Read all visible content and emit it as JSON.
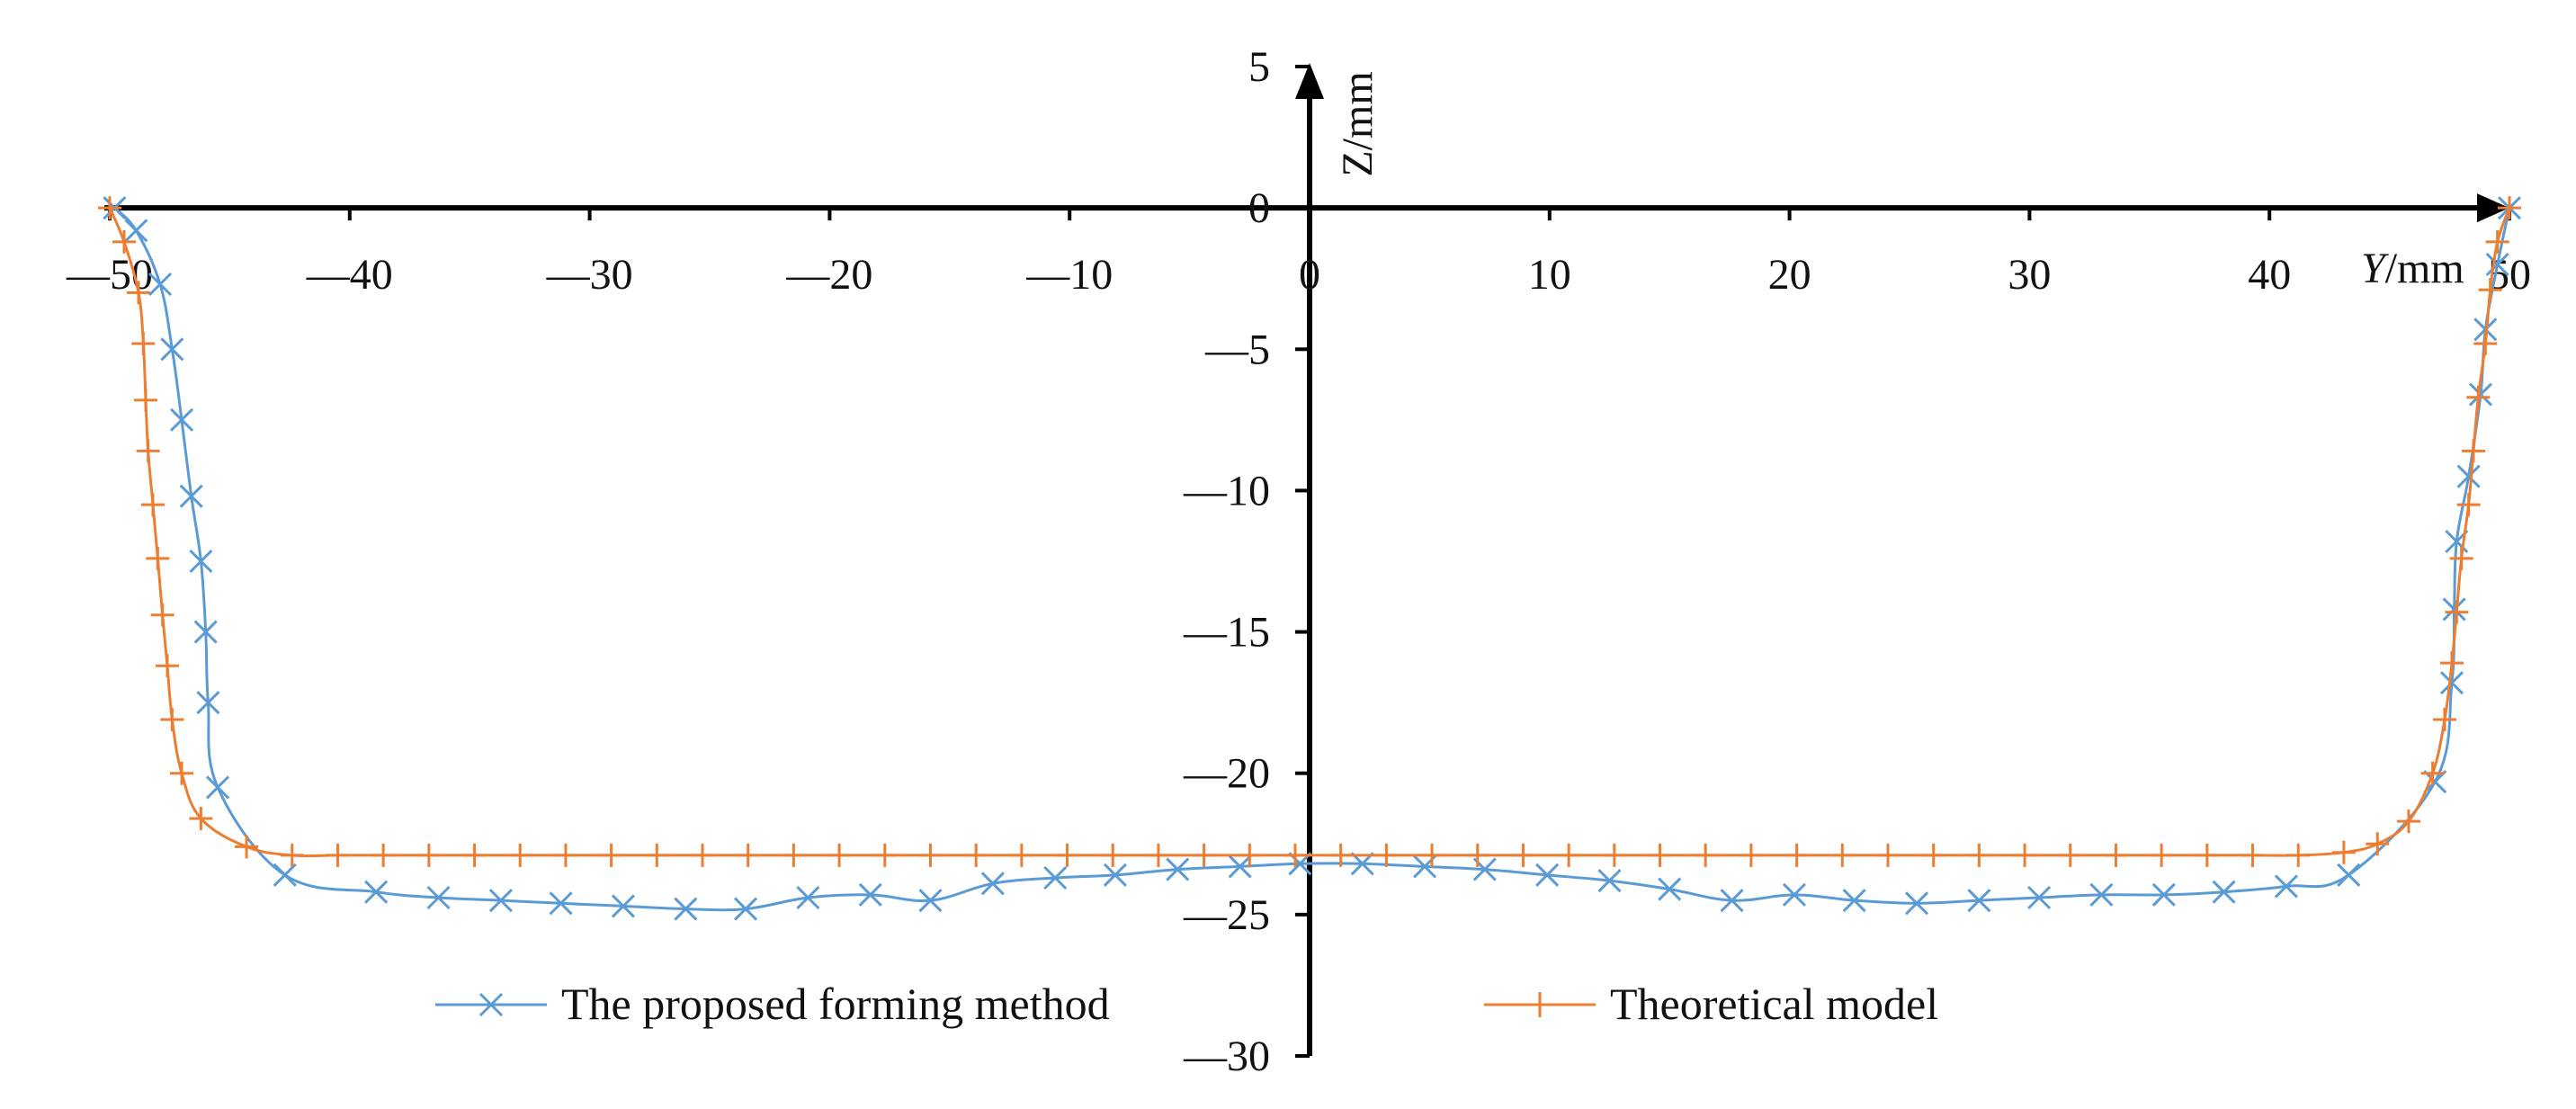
{
  "chart_data": {
    "type": "line",
    "title": "",
    "xlabel": "Y/mm",
    "xlabel_parts": [
      "Y",
      "/mm"
    ],
    "ylabel": "Z/mm",
    "xlim": [
      -50,
      50
    ],
    "ylim": [
      -30,
      5
    ],
    "x_ticks": [
      -50,
      -40,
      -30,
      -20,
      -10,
      0,
      10,
      20,
      30,
      40,
      50
    ],
    "x_tick_labels": [
      "—50",
      "—40",
      "—30",
      "—20",
      "—10",
      "0",
      "10",
      "20",
      "30",
      "40",
      "50"
    ],
    "y_ticks": [
      5,
      0,
      -5,
      -10,
      -15,
      -20,
      -25,
      -30
    ],
    "y_tick_labels": [
      "5",
      "0",
      "—5",
      "—10",
      "—15",
      "—20",
      "—25",
      "—30"
    ],
    "grid": false,
    "legend_position": "bottom",
    "series": [
      {
        "name": "The proposed forming method",
        "color": "#5B9BD5",
        "marker": "x",
        "points": [
          [
            -49.8,
            0.0
          ],
          [
            -48.9,
            -0.8
          ],
          [
            -47.9,
            -2.7
          ],
          [
            -47.4,
            -5.0
          ],
          [
            -47.0,
            -7.5
          ],
          [
            -46.6,
            -10.2
          ],
          [
            -46.2,
            -12.5
          ],
          [
            -46.0,
            -15.0
          ],
          [
            -45.9,
            -17.5
          ],
          [
            -45.5,
            -20.5
          ],
          [
            -42.7,
            -23.6
          ],
          [
            -38.9,
            -24.2
          ],
          [
            -36.3,
            -24.4
          ],
          [
            -33.7,
            -24.5
          ],
          [
            -31.2,
            -24.6
          ],
          [
            -28.6,
            -24.7
          ],
          [
            -26.0,
            -24.8
          ],
          [
            -23.5,
            -24.8
          ],
          [
            -20.9,
            -24.4
          ],
          [
            -18.3,
            -24.3
          ],
          [
            -15.8,
            -24.5
          ],
          [
            -13.2,
            -23.9
          ],
          [
            -10.6,
            -23.7
          ],
          [
            -8.1,
            -23.6
          ],
          [
            -5.5,
            -23.4
          ],
          [
            -2.9,
            -23.3
          ],
          [
            -0.4,
            -23.2
          ],
          [
            2.2,
            -23.2
          ],
          [
            4.8,
            -23.3
          ],
          [
            7.3,
            -23.4
          ],
          [
            9.9,
            -23.6
          ],
          [
            12.5,
            -23.8
          ],
          [
            15.0,
            -24.1
          ],
          [
            17.6,
            -24.5
          ],
          [
            20.2,
            -24.3
          ],
          [
            22.7,
            -24.5
          ],
          [
            25.3,
            -24.6
          ],
          [
            27.9,
            -24.5
          ],
          [
            30.4,
            -24.4
          ],
          [
            33.0,
            -24.3
          ],
          [
            35.6,
            -24.3
          ],
          [
            38.1,
            -24.2
          ],
          [
            40.7,
            -24.0
          ],
          [
            43.3,
            -23.6
          ],
          [
            46.9,
            -20.3
          ],
          [
            47.6,
            -16.8
          ],
          [
            47.7,
            -14.2
          ],
          [
            47.8,
            -11.8
          ],
          [
            48.3,
            -9.5
          ],
          [
            48.8,
            -6.6
          ],
          [
            49.0,
            -4.3
          ],
          [
            49.5,
            -2.0
          ],
          [
            50.0,
            0.0
          ]
        ]
      },
      {
        "name": "Theoretical model",
        "color": "#ED7D31",
        "marker": "plus",
        "points": [
          [
            -50.0,
            0.0
          ],
          [
            -49.4,
            -1.2
          ],
          [
            -48.8,
            -3.0
          ],
          [
            -48.6,
            -4.8
          ],
          [
            -48.5,
            -6.8
          ],
          [
            -48.4,
            -8.6
          ],
          [
            -48.2,
            -10.5
          ],
          [
            -48.0,
            -12.4
          ],
          [
            -47.8,
            -14.4
          ],
          [
            -47.6,
            -16.2
          ],
          [
            -47.4,
            -18.1
          ],
          [
            -47.0,
            -20.0
          ],
          [
            -46.2,
            -21.6
          ],
          [
            -44.3,
            -22.6
          ],
          [
            -42.4,
            -22.9
          ],
          [
            -40.5,
            -22.9
          ],
          [
            -38.6,
            -22.9
          ],
          [
            -36.7,
            -22.9
          ],
          [
            -34.8,
            -22.9
          ],
          [
            -32.9,
            -22.9
          ],
          [
            -31.0,
            -22.9
          ],
          [
            -29.1,
            -22.9
          ],
          [
            -27.2,
            -22.9
          ],
          [
            -25.3,
            -22.9
          ],
          [
            -23.4,
            -22.9
          ],
          [
            -21.5,
            -22.9
          ],
          [
            -19.6,
            -22.9
          ],
          [
            -17.7,
            -22.9
          ],
          [
            -15.8,
            -22.9
          ],
          [
            -13.9,
            -22.9
          ],
          [
            -12.0,
            -22.9
          ],
          [
            -10.1,
            -22.9
          ],
          [
            -8.2,
            -22.9
          ],
          [
            -6.3,
            -22.9
          ],
          [
            -4.4,
            -22.9
          ],
          [
            -2.5,
            -22.9
          ],
          [
            -0.6,
            -22.9
          ],
          [
            1.3,
            -22.9
          ],
          [
            3.2,
            -22.9
          ],
          [
            5.1,
            -22.9
          ],
          [
            7.0,
            -22.9
          ],
          [
            8.9,
            -22.9
          ],
          [
            10.8,
            -22.9
          ],
          [
            12.7,
            -22.9
          ],
          [
            14.6,
            -22.9
          ],
          [
            16.5,
            -22.9
          ],
          [
            18.4,
            -22.9
          ],
          [
            20.3,
            -22.9
          ],
          [
            22.2,
            -22.9
          ],
          [
            24.1,
            -22.9
          ],
          [
            26.0,
            -22.9
          ],
          [
            27.9,
            -22.9
          ],
          [
            29.8,
            -22.9
          ],
          [
            31.7,
            -22.9
          ],
          [
            33.6,
            -22.9
          ],
          [
            35.5,
            -22.9
          ],
          [
            37.4,
            -22.9
          ],
          [
            39.3,
            -22.9
          ],
          [
            41.2,
            -22.9
          ],
          [
            43.1,
            -22.8
          ],
          [
            44.5,
            -22.5
          ],
          [
            45.8,
            -21.7
          ],
          [
            46.8,
            -20.0
          ],
          [
            47.3,
            -18.1
          ],
          [
            47.6,
            -16.1
          ],
          [
            47.8,
            -14.3
          ],
          [
            48.0,
            -12.4
          ],
          [
            48.3,
            -10.5
          ],
          [
            48.5,
            -8.6
          ],
          [
            48.7,
            -6.7
          ],
          [
            49.0,
            -4.8
          ],
          [
            49.2,
            -2.9
          ],
          [
            49.5,
            -1.2
          ],
          [
            50.0,
            0.0
          ]
        ]
      }
    ]
  }
}
